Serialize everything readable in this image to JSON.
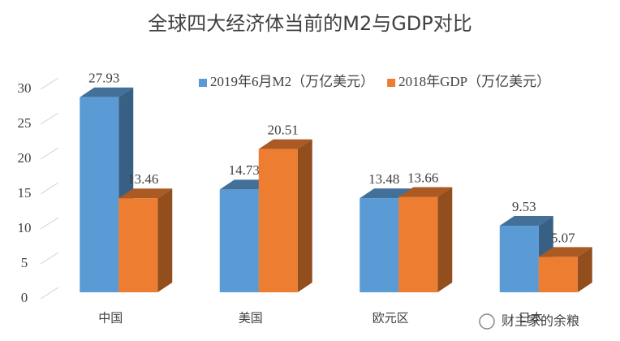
{
  "chart_data": {
    "type": "bar3d",
    "title": "全球四大经济体当前的M2与GDP对比",
    "categories": [
      "中国",
      "美国",
      "欧元区",
      "日本"
    ],
    "series": [
      {
        "name": "2019年6月M2（万亿美元）",
        "color": "#5b9bd5",
        "values": [
          27.93,
          14.73,
          13.48,
          9.53
        ]
      },
      {
        "name": "2018年GDP（万亿美元）",
        "color": "#ed7d31",
        "values": [
          13.46,
          20.51,
          13.66,
          5.07
        ]
      }
    ],
    "ylim": [
      0,
      30
    ],
    "yticks": [
      0,
      5,
      10,
      15,
      20,
      25,
      30
    ],
    "grid": true,
    "legend": "top-right",
    "watermark": "财主家的余粮"
  }
}
